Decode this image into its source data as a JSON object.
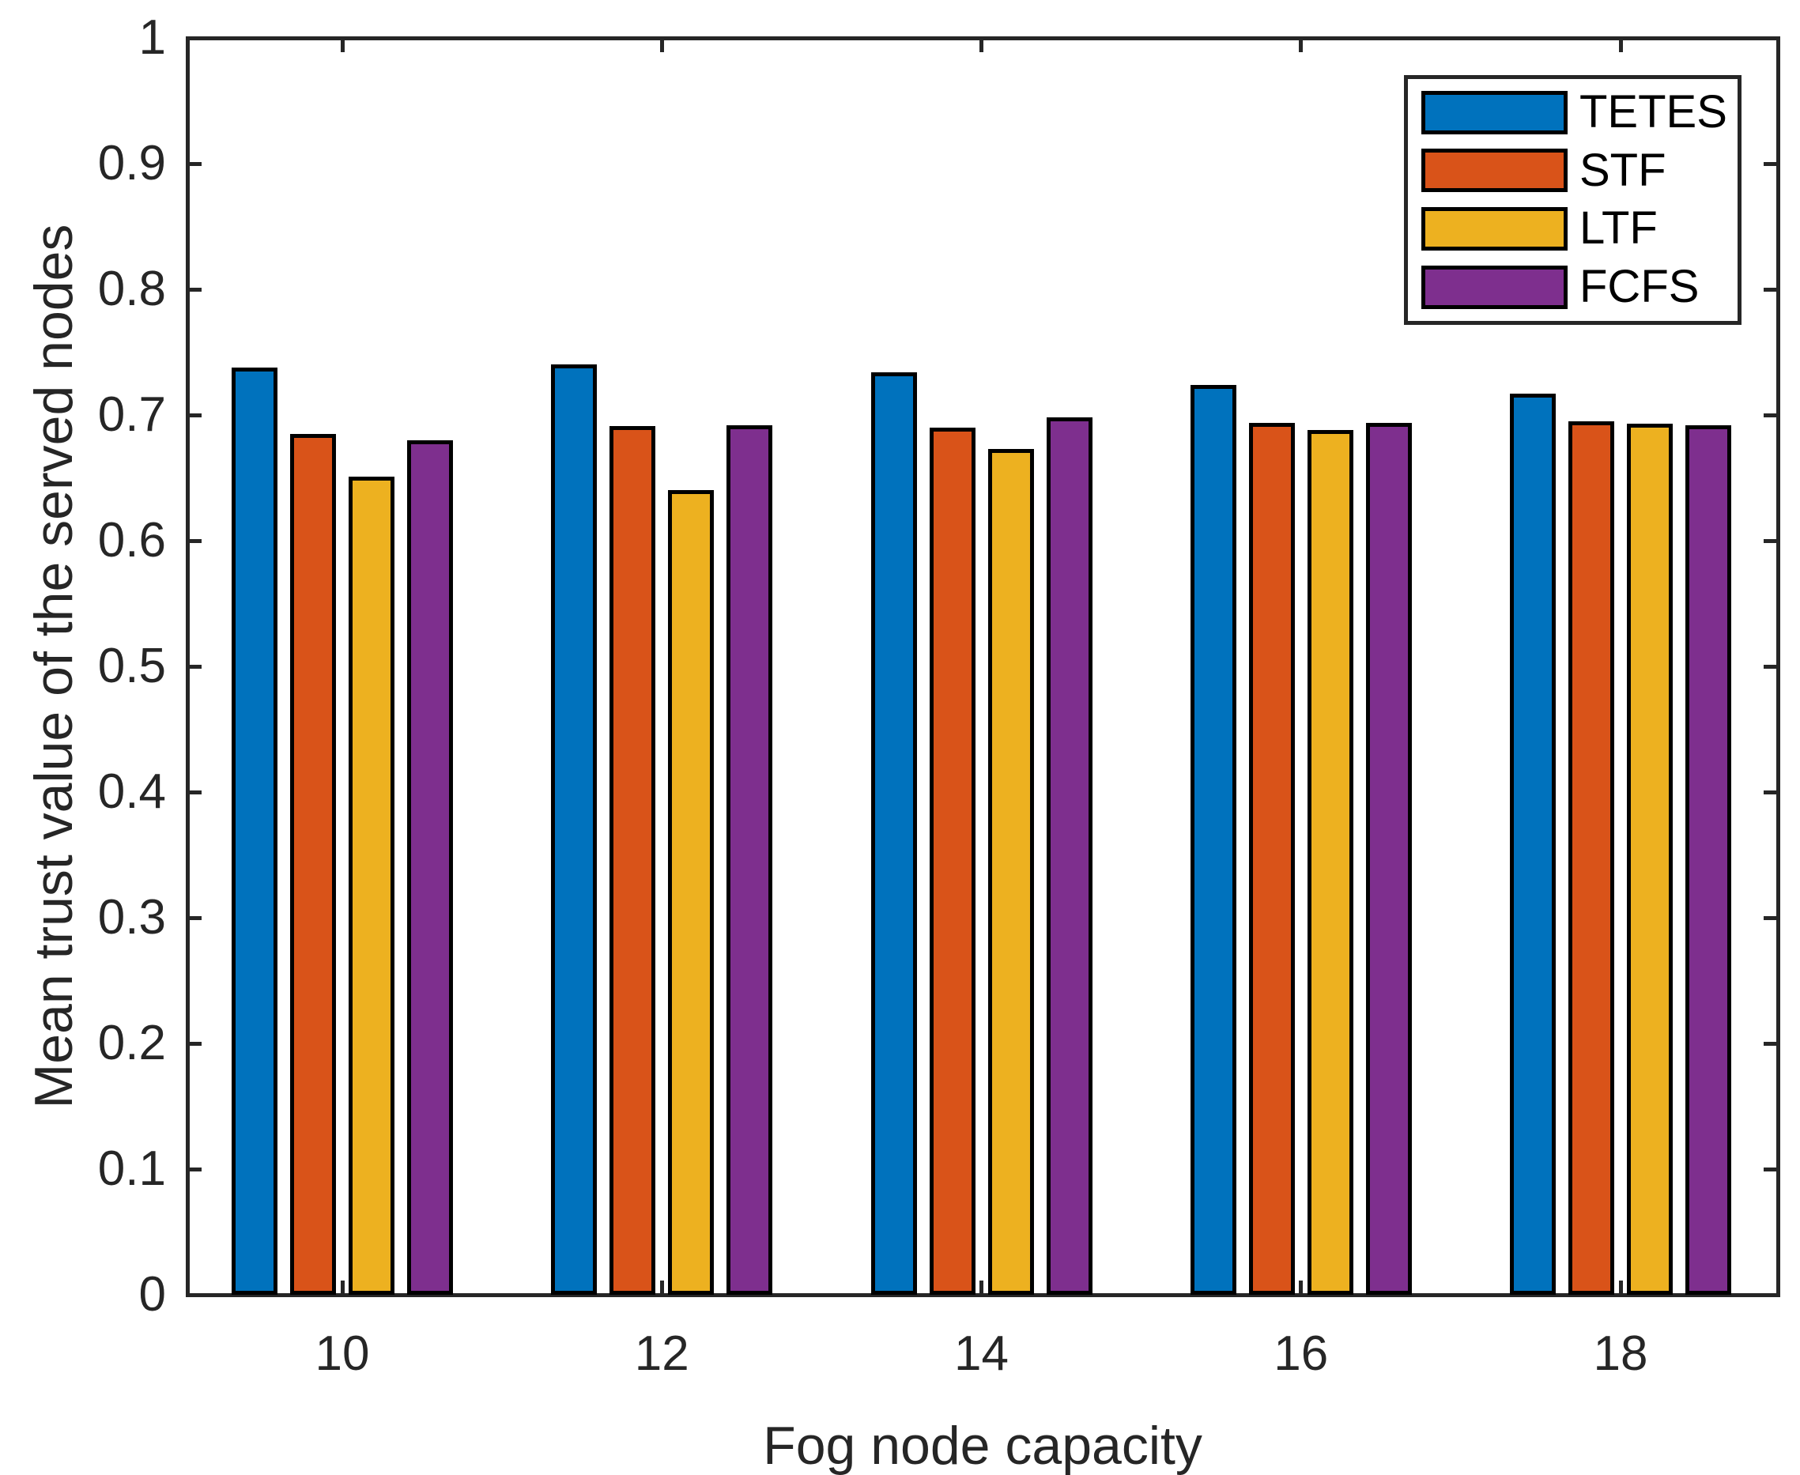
{
  "figure": {
    "background": "#FFFFFF"
  },
  "chart_data": {
    "type": "bar",
    "title": "",
    "xlabel": "Fog node capacity",
    "ylabel": "Mean trust value of the served nodes",
    "categories": [
      "10",
      "12",
      "14",
      "16",
      "18"
    ],
    "series": [
      {
        "name": "TETES",
        "color": "#0072BD",
        "values": [
          0.738,
          0.74,
          0.734,
          0.724,
          0.717
        ]
      },
      {
        "name": "STF",
        "color": "#D95319",
        "values": [
          0.685,
          0.691,
          0.69,
          0.694,
          0.695
        ]
      },
      {
        "name": "LTF",
        "color": "#EDB120",
        "values": [
          0.651,
          0.64,
          0.673,
          0.688,
          0.693
        ]
      },
      {
        "name": "FCFS",
        "color": "#7E2F8E",
        "values": [
          0.68,
          0.692,
          0.698,
          0.694,
          0.692
        ]
      }
    ],
    "ylim": [
      0,
      1
    ],
    "ytick_labels": [
      "0",
      "0.1",
      "0.2",
      "0.3",
      "0.4",
      "0.5",
      "0.6",
      "0.7",
      "0.8",
      "0.9",
      "1"
    ],
    "grid": false,
    "legend": {
      "position": "northeast",
      "labels": [
        "TETES",
        "STF",
        "LTF",
        "FCFS"
      ]
    },
    "bar_edge_color": "#000000",
    "axis_color": "#262626"
  }
}
